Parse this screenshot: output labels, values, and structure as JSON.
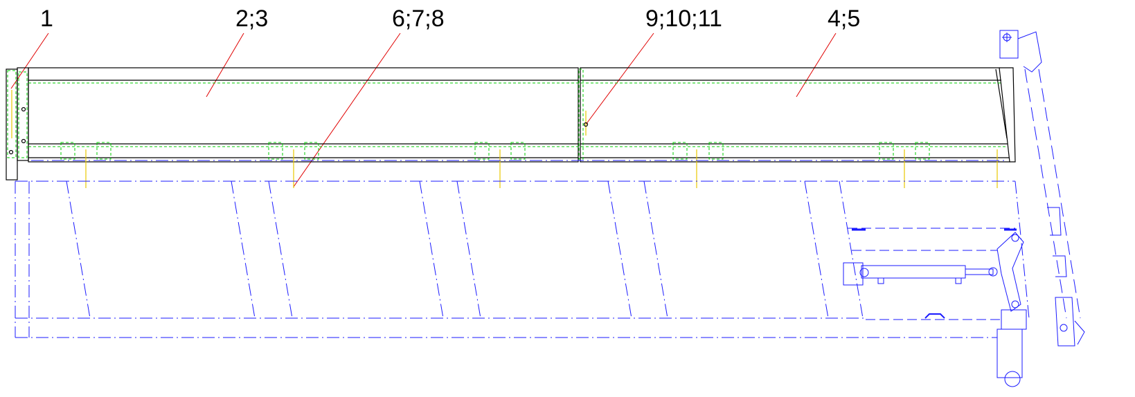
{
  "drawing": {
    "callouts": [
      "1",
      "2;3",
      "6;7;8",
      "9;10;11",
      "4;5"
    ]
  },
  "colors": {
    "outline": "#000000",
    "leader": "#e00000",
    "hidden_blue": "#1a1aff",
    "hidden_green": "#00cc00",
    "fastener_yellow": "#e8c800"
  }
}
